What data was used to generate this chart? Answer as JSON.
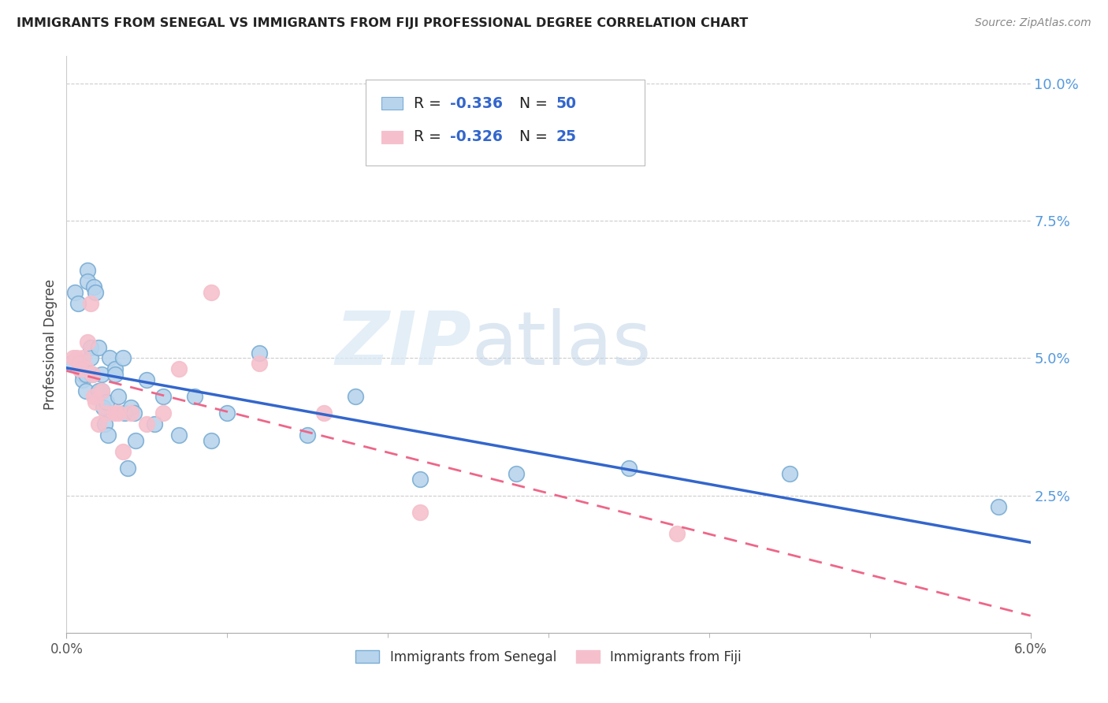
{
  "title": "IMMIGRANTS FROM SENEGAL VS IMMIGRANTS FROM FIJI PROFESSIONAL DEGREE CORRELATION CHART",
  "source": "Source: ZipAtlas.com",
  "ylabel": "Professional Degree",
  "right_ytick_vals": [
    0.025,
    0.05,
    0.075,
    0.1
  ],
  "right_ytick_labels": [
    "2.5%",
    "5.0%",
    "7.5%",
    "10.0%"
  ],
  "xmin": 0.0,
  "xmax": 0.06,
  "ymin": 0.0,
  "ymax": 0.105,
  "legend1_R": "-0.336",
  "legend1_N": "50",
  "legend2_R": "-0.326",
  "legend2_N": "25",
  "legend_label1": "Immigrants from Senegal",
  "legend_label2": "Immigrants from Fiji",
  "color_senegal_face": "#b8d4ed",
  "color_senegal_edge": "#7aadd4",
  "color_fiji_face": "#f5c0cc",
  "color_fiji_edge": "#f5c0cc",
  "color_line_senegal": "#3366cc",
  "color_line_fiji": "#ee6688",
  "watermark_zip": "ZIP",
  "watermark_atlas": "atlas",
  "senegal_x": [
    0.0003,
    0.0005,
    0.0007,
    0.0008,
    0.0008,
    0.0009,
    0.001,
    0.001,
    0.0012,
    0.0012,
    0.0013,
    0.0013,
    0.0015,
    0.0015,
    0.0016,
    0.0017,
    0.0018,
    0.002,
    0.002,
    0.0022,
    0.0022,
    0.0023,
    0.0024,
    0.0025,
    0.0026,
    0.0027,
    0.003,
    0.003,
    0.0032,
    0.0035,
    0.0036,
    0.0038,
    0.004,
    0.0042,
    0.0043,
    0.005,
    0.0055,
    0.006,
    0.007,
    0.008,
    0.009,
    0.01,
    0.012,
    0.015,
    0.018,
    0.022,
    0.028,
    0.035,
    0.045,
    0.058
  ],
  "senegal_y": [
    0.049,
    0.062,
    0.06,
    0.049,
    0.049,
    0.048,
    0.047,
    0.046,
    0.047,
    0.044,
    0.066,
    0.064,
    0.052,
    0.05,
    0.047,
    0.063,
    0.062,
    0.052,
    0.044,
    0.047,
    0.044,
    0.041,
    0.038,
    0.042,
    0.036,
    0.05,
    0.048,
    0.047,
    0.043,
    0.05,
    0.04,
    0.03,
    0.041,
    0.04,
    0.035,
    0.046,
    0.038,
    0.043,
    0.036,
    0.043,
    0.035,
    0.04,
    0.051,
    0.036,
    0.043,
    0.028,
    0.029,
    0.03,
    0.029,
    0.023
  ],
  "fiji_x": [
    0.0004,
    0.0006,
    0.0008,
    0.001,
    0.0012,
    0.0013,
    0.0015,
    0.0016,
    0.0017,
    0.0018,
    0.002,
    0.0022,
    0.0025,
    0.003,
    0.0032,
    0.0035,
    0.004,
    0.005,
    0.006,
    0.007,
    0.009,
    0.012,
    0.016,
    0.022,
    0.038
  ],
  "fiji_y": [
    0.05,
    0.05,
    0.048,
    0.05,
    0.048,
    0.053,
    0.06,
    0.047,
    0.043,
    0.042,
    0.038,
    0.044,
    0.04,
    0.04,
    0.04,
    0.033,
    0.04,
    0.038,
    0.04,
    0.048,
    0.062,
    0.049,
    0.04,
    0.022,
    0.018
  ]
}
